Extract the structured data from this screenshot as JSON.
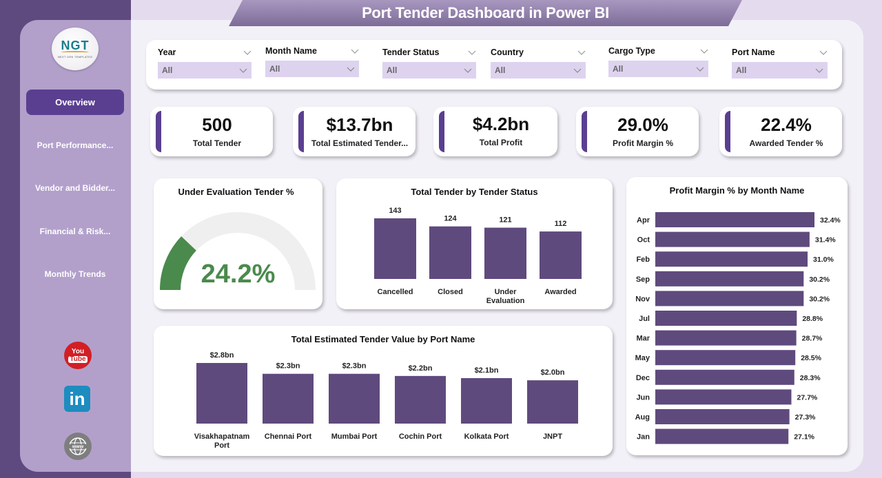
{
  "header": {
    "title": "Port Tender Dashboard in Power BI"
  },
  "logo": {
    "text": "NGT",
    "subtitle": "NEXT GEN TEMPLATES"
  },
  "sidebar": {
    "items": [
      {
        "label": "Overview",
        "active": true
      },
      {
        "label": "Port Performance...",
        "active": false
      },
      {
        "label": "Vendor and Bidder...",
        "active": false
      },
      {
        "label": "Financial & Risk...",
        "active": false
      },
      {
        "label": "Monthly Trends",
        "active": false
      }
    ],
    "social": [
      {
        "name": "youtube-icon",
        "text_top": "You",
        "text_bottom": "Tube"
      },
      {
        "name": "linkedin-icon",
        "text": "in"
      },
      {
        "name": "website-icon",
        "text": "www"
      }
    ]
  },
  "filters": [
    {
      "label": "Year",
      "value": "All"
    },
    {
      "label": "Month Name",
      "value": "All"
    },
    {
      "label": "Tender Status",
      "value": "All"
    },
    {
      "label": "Country",
      "value": "All"
    },
    {
      "label": "Cargo Type",
      "value": "All"
    },
    {
      "label": "Port Name",
      "value": "All"
    }
  ],
  "kpis": [
    {
      "value": "500",
      "label": "Total Tender"
    },
    {
      "value": "$13.7bn",
      "label": "Total Estimated Tender..."
    },
    {
      "value": "$4.2bn",
      "label": "Total Profit"
    },
    {
      "value": "29.0%",
      "label": "Profit Margin %"
    },
    {
      "value": "22.4%",
      "label": "Awarded Tender %"
    }
  ],
  "gauge": {
    "title": "Under Evaluation Tender %",
    "value_label": "24.2%",
    "value": 24.2,
    "min": 0,
    "max": 100,
    "fill_color": "#4a8a4c",
    "track_color": "#f0efef"
  },
  "colors": {
    "bar": "#5f4a7d",
    "accent": "#5a3f91",
    "sidebar": "#b2a0cb",
    "sidebar_dark": "#5f4a80"
  },
  "chart_data": [
    {
      "type": "bar",
      "title": "Total Tender by Tender Status",
      "categories": [
        "Cancelled",
        "Closed",
        "Under Evaluation",
        "Awarded"
      ],
      "category_lines": [
        [
          "Cancelled"
        ],
        [
          "Closed"
        ],
        [
          "Under",
          "Evaluation"
        ],
        [
          "Awarded"
        ]
      ],
      "values": [
        143,
        124,
        121,
        112
      ],
      "labels": [
        "143",
        "124",
        "121",
        "112"
      ],
      "xlabel": "",
      "ylabel": "",
      "ylim": [
        0,
        143
      ],
      "grid": false
    },
    {
      "type": "bar",
      "title": "Total Estimated Tender Value by Port Name",
      "categories": [
        "Visakhapatnam Port",
        "Chennai Port",
        "Mumbai Port",
        "Cochin Port",
        "Kolkata Port",
        "JNPT"
      ],
      "category_lines": [
        [
          "Visakhapatnam",
          "Port"
        ],
        [
          "Chennai Port"
        ],
        [
          "Mumbai Port"
        ],
        [
          "Cochin Port"
        ],
        [
          "Kolkata Port"
        ],
        [
          "JNPT"
        ]
      ],
      "values": [
        2.8,
        2.3,
        2.3,
        2.2,
        2.1,
        2.0
      ],
      "labels": [
        "$2.8bn",
        "$2.3bn",
        "$2.3bn",
        "$2.2bn",
        "$2.1bn",
        "$2.0bn"
      ],
      "unit": "$bn",
      "xlabel": "",
      "ylabel": "",
      "ylim": [
        0,
        2.8
      ],
      "grid": false
    },
    {
      "type": "bar",
      "orientation": "horizontal",
      "title": "Profit Margin % by Month Name",
      "categories": [
        "Apr",
        "Oct",
        "Feb",
        "Sep",
        "Nov",
        "Jul",
        "Mar",
        "May",
        "Dec",
        "Jun",
        "Aug",
        "Jan"
      ],
      "values": [
        32.4,
        31.4,
        31.0,
        30.2,
        30.2,
        28.8,
        28.7,
        28.5,
        28.3,
        27.7,
        27.3,
        27.1
      ],
      "labels": [
        "32.4%",
        "31.4%",
        "31.0%",
        "30.2%",
        "30.2%",
        "28.8%",
        "28.7%",
        "28.5%",
        "28.3%",
        "27.7%",
        "27.3%",
        "27.1%"
      ],
      "unit": "%",
      "xlabel": "",
      "ylabel": "",
      "xlim": [
        0,
        32.4
      ],
      "grid": false
    }
  ]
}
